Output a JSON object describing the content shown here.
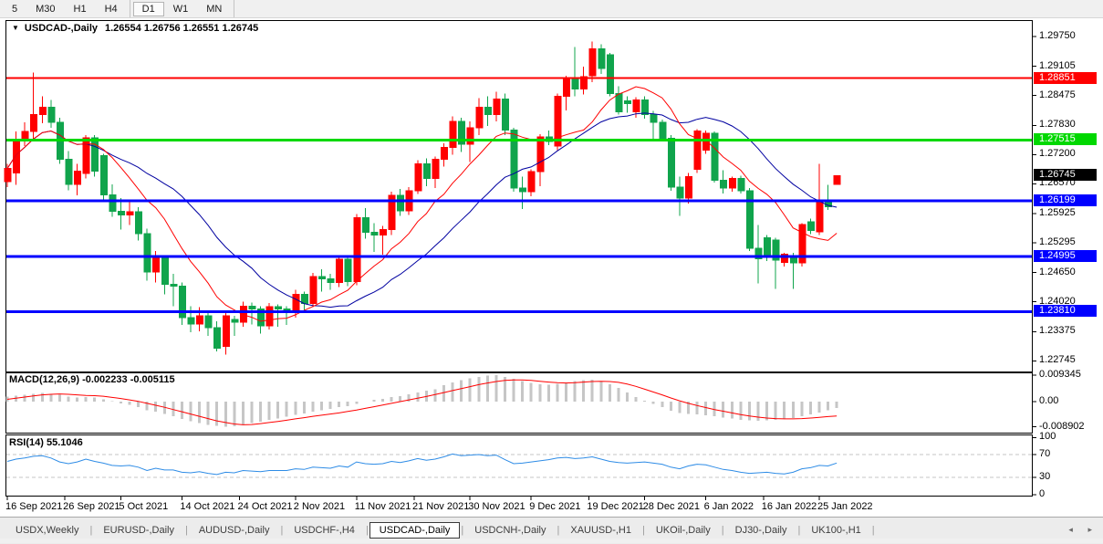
{
  "toolbar": {
    "groups": [
      [
        "5",
        "M30",
        "H1",
        "H4"
      ],
      [
        "D1",
        "W1",
        "MN"
      ]
    ],
    "active": "D1"
  },
  "chart": {
    "dropdown_icon": "▼",
    "title_symbol": "USDCAD-,Daily",
    "title_ohlc": "1.26554 1.26756 1.26551 1.26745",
    "macd_label": "MACD(12,26,9)",
    "macd_values": "-0.002233 -0.005115",
    "rsi_label": "RSI(14)",
    "rsi_values": "55.1046"
  },
  "chart_data": {
    "type": "candlestick",
    "symbol": "USDCAD",
    "timeframe": "Daily",
    "ohlc_current": {
      "open": 1.26554,
      "high": 1.26756,
      "low": 1.26551,
      "close": 1.26745
    },
    "price_axis": [
      "1.29750",
      "1.29105",
      "1.28475",
      "1.27830",
      "1.27200",
      "1.26570",
      "1.25925",
      "1.25295",
      "1.24650",
      "1.24020",
      "1.23375",
      "1.22745"
    ],
    "hlines": [
      {
        "label": "1.28851",
        "price": 1.28851,
        "color": "#ff0000",
        "width": 2
      },
      {
        "label": "1.27515",
        "price": 1.27515,
        "color": "#00d800",
        "width": 3
      },
      {
        "label": "1.26199",
        "price": 1.26199,
        "color": "#0000ff",
        "width": 3
      },
      {
        "label": "1.24995",
        "price": 1.24995,
        "color": "#0000ff",
        "width": 3
      },
      {
        "label": "1.23810",
        "price": 1.2381,
        "color": "#0000ff",
        "width": 3
      }
    ],
    "current_price_label": "1.26745",
    "candles": [
      [
        1.2662,
        1.27,
        1.265,
        1.269
      ],
      [
        1.268,
        1.277,
        1.2655,
        1.2748
      ],
      [
        1.2755,
        1.279,
        1.2738,
        1.277
      ],
      [
        1.277,
        1.2897,
        1.2753,
        1.2806
      ],
      [
        1.2806,
        1.2846,
        1.2788,
        1.2822
      ],
      [
        1.2822,
        1.2838,
        1.2778,
        1.279
      ],
      [
        1.279,
        1.28,
        1.27,
        1.271
      ],
      [
        1.271,
        1.2728,
        1.2643,
        1.2656
      ],
      [
        1.2656,
        1.27,
        1.2632,
        1.2684
      ],
      [
        1.2679,
        1.2762,
        1.2668,
        1.2756
      ],
      [
        1.2756,
        1.2762,
        1.2672,
        1.2684
      ],
      [
        1.2718,
        1.2722,
        1.2618,
        1.2633
      ],
      [
        1.2633,
        1.2656,
        1.2586,
        1.2597
      ],
      [
        1.2597,
        1.2626,
        1.2558,
        1.259
      ],
      [
        1.259,
        1.2621,
        1.2568,
        1.2596
      ],
      [
        1.2596,
        1.2606,
        1.2534,
        1.2549
      ],
      [
        1.2549,
        1.256,
        1.2448,
        1.2466
      ],
      [
        1.2466,
        1.2512,
        1.2444,
        1.2496
      ],
      [
        1.2496,
        1.2502,
        1.2418,
        1.244
      ],
      [
        1.244,
        1.2462,
        1.2392,
        1.2436
      ],
      [
        1.2436,
        1.2444,
        1.2352,
        1.2368
      ],
      [
        1.2368,
        1.2392,
        1.2336,
        1.2354
      ],
      [
        1.2354,
        1.239,
        1.2338,
        1.2372
      ],
      [
        1.2372,
        1.238,
        1.2328,
        1.2346
      ],
      [
        1.2346,
        1.236,
        1.2295,
        1.2302
      ],
      [
        1.2306,
        1.238,
        1.2288,
        1.2372
      ],
      [
        1.2364,
        1.2372,
        1.2328,
        1.2358
      ],
      [
        1.2358,
        1.2402,
        1.2348,
        1.2392
      ],
      [
        1.2392,
        1.24,
        1.2353,
        1.2386
      ],
      [
        1.2386,
        1.2392,
        1.2333,
        1.235
      ],
      [
        1.235,
        1.2399,
        1.2342,
        1.2391
      ],
      [
        1.2391,
        1.2396,
        1.2348,
        1.2386
      ],
      [
        1.2386,
        1.2392,
        1.2352,
        1.2383
      ],
      [
        1.2383,
        1.2428,
        1.2368,
        1.2418
      ],
      [
        1.2418,
        1.2424,
        1.2383,
        1.2398
      ],
      [
        1.2398,
        1.2464,
        1.239,
        1.2456
      ],
      [
        1.2456,
        1.2472,
        1.2424,
        1.2452
      ],
      [
        1.2452,
        1.2462,
        1.2428,
        1.2444
      ],
      [
        1.2444,
        1.2502,
        1.2434,
        1.2494
      ],
      [
        1.2494,
        1.25,
        1.2436,
        1.2446
      ],
      [
        1.2446,
        1.2592,
        1.2438,
        1.2584
      ],
      [
        1.2584,
        1.2604,
        1.2538,
        1.2552
      ],
      [
        1.2552,
        1.2572,
        1.251,
        1.2546
      ],
      [
        1.2546,
        1.2566,
        1.2504,
        1.2558
      ],
      [
        1.2558,
        1.264,
        1.2546,
        1.2632
      ],
      [
        1.2632,
        1.2646,
        1.2588,
        1.2598
      ],
      [
        1.2598,
        1.265,
        1.259,
        1.2642
      ],
      [
        1.2642,
        1.2708,
        1.2635,
        1.27
      ],
      [
        1.27,
        1.2712,
        1.2652,
        1.2668
      ],
      [
        1.2668,
        1.2716,
        1.2648,
        1.271
      ],
      [
        1.271,
        1.2744,
        1.2694,
        1.2735
      ],
      [
        1.2735,
        1.2802,
        1.272,
        1.2792
      ],
      [
        1.2792,
        1.28,
        1.2726,
        1.2742
      ],
      [
        1.2742,
        1.2792,
        1.2704,
        1.2778
      ],
      [
        1.2778,
        1.2842,
        1.2762,
        1.2822
      ],
      [
        1.2822,
        1.2846,
        1.2782,
        1.2806
      ],
      [
        1.2806,
        1.2856,
        1.2792,
        1.284
      ],
      [
        1.284,
        1.2852,
        1.2762,
        1.2773
      ],
      [
        1.2773,
        1.2778,
        1.264,
        1.2648
      ],
      [
        1.2648,
        1.2672,
        1.2602,
        1.264
      ],
      [
        1.264,
        1.2688,
        1.263,
        1.2683
      ],
      [
        1.2683,
        1.2764,
        1.2652,
        1.2758
      ],
      [
        1.2758,
        1.2772,
        1.274,
        1.2748
      ],
      [
        1.2738,
        1.2852,
        1.273,
        1.2846
      ],
      [
        1.2846,
        1.289,
        1.2815,
        1.2884
      ],
      [
        1.2884,
        1.2952,
        1.2846,
        1.2862
      ],
      [
        1.2862,
        1.291,
        1.285,
        1.2888
      ],
      [
        1.289,
        1.2964,
        1.2876,
        1.2948
      ],
      [
        1.2948,
        1.2958,
        1.2894,
        1.2906
      ],
      [
        1.2936,
        1.294,
        1.2846,
        1.2852
      ],
      [
        1.2852,
        1.2868,
        1.2806,
        1.2812
      ],
      [
        1.2836,
        1.2846,
        1.281,
        1.283
      ],
      [
        1.2812,
        1.2844,
        1.28,
        1.2838
      ],
      [
        1.2838,
        1.2846,
        1.2798,
        1.2806
      ],
      [
        1.2806,
        1.2814,
        1.2752,
        1.279
      ],
      [
        1.279,
        1.2796,
        1.2748,
        1.2755
      ],
      [
        1.2755,
        1.2762,
        1.2642,
        1.265
      ],
      [
        1.265,
        1.2672,
        1.2588,
        1.2626
      ],
      [
        1.2626,
        1.268,
        1.2614,
        1.2672
      ],
      [
        1.2688,
        1.2775,
        1.268,
        1.2771
      ],
      [
        1.273,
        1.2772,
        1.2722,
        1.2766
      ],
      [
        1.2766,
        1.277,
        1.266,
        1.2664
      ],
      [
        1.2664,
        1.2686,
        1.2636,
        1.2648
      ],
      [
        1.2648,
        1.2672,
        1.264,
        1.2668
      ],
      [
        1.2668,
        1.2674,
        1.2636,
        1.2642
      ],
      [
        1.2642,
        1.2648,
        1.2512,
        1.2518
      ],
      [
        1.2518,
        1.2568,
        1.2442,
        1.2495
      ],
      [
        1.254,
        1.2546,
        1.249,
        1.2498
      ],
      [
        1.2535,
        1.254,
        1.243,
        1.2492
      ],
      [
        1.2487,
        1.2508,
        1.2478,
        1.2505
      ],
      [
        1.2502,
        1.2508,
        1.243,
        1.2486
      ],
      [
        1.2486,
        1.2572,
        1.2478,
        1.2569
      ],
      [
        1.2575,
        1.2582,
        1.2548,
        1.2556
      ],
      [
        1.2553,
        1.27,
        1.2546,
        1.2619
      ],
      [
        1.2621,
        1.2655,
        1.26,
        1.2607
      ],
      [
        1.26554,
        1.26756,
        1.26551,
        1.26745
      ]
    ],
    "ma": [
      {
        "name": "fast-ma",
        "period": 10,
        "color": "#ff0000"
      },
      {
        "name": "slow-ma",
        "period": 20,
        "color": "#0000a0"
      }
    ],
    "macd": {
      "axis": [
        "0.009345",
        "0.00",
        "-0.008902"
      ],
      "hist": [
        0.0018,
        0.0021,
        0.0024,
        0.0028,
        0.003,
        0.0028,
        0.0024,
        0.0018,
        0.0015,
        0.0016,
        0.0014,
        0.0008,
        0.0001,
        -0.0006,
        -0.0012,
        -0.0019,
        -0.003,
        -0.0036,
        -0.0044,
        -0.0052,
        -0.0062,
        -0.007,
        -0.0076,
        -0.0082,
        -0.0086,
        -0.0089,
        -0.0087,
        -0.0082,
        -0.0076,
        -0.0071,
        -0.0065,
        -0.006,
        -0.0054,
        -0.0047,
        -0.0042,
        -0.0035,
        -0.003,
        -0.0026,
        -0.002,
        -0.0016,
        -0.0008,
        0.0,
        0.0006,
        0.001,
        0.0016,
        0.002,
        0.0026,
        0.0033,
        0.0038,
        0.0044,
        0.0058,
        0.0068,
        0.0076,
        0.0083,
        0.0088,
        0.0092,
        0.0093,
        0.0088,
        0.008,
        0.0072,
        0.0066,
        0.0062,
        0.006,
        0.0063,
        0.0068,
        0.0072,
        0.0076,
        0.0078,
        0.0072,
        0.0062,
        0.0048,
        0.0032,
        0.0016,
        0.0004,
        -0.0008,
        -0.002,
        -0.0032,
        -0.004,
        -0.0044,
        -0.0046,
        -0.0048,
        -0.0052,
        -0.0056,
        -0.006,
        -0.0064,
        -0.0067,
        -0.0068,
        -0.0067,
        -0.0065,
        -0.0062,
        -0.0058,
        -0.0052,
        -0.0045,
        -0.0038,
        -0.003,
        -0.002233
      ],
      "signal": [
        0.0008,
        0.0012,
        0.0016,
        0.002,
        0.0024,
        0.0026,
        0.0027,
        0.0026,
        0.0024,
        0.0022,
        0.0021,
        0.0019,
        0.0015,
        0.0011,
        0.0006,
        0.0001,
        -0.0006,
        -0.0013,
        -0.002,
        -0.0028,
        -0.0036,
        -0.0044,
        -0.0052,
        -0.006,
        -0.0068,
        -0.0074,
        -0.0079,
        -0.0082,
        -0.0081,
        -0.0078,
        -0.0074,
        -0.007,
        -0.0066,
        -0.0061,
        -0.0057,
        -0.0052,
        -0.0048,
        -0.0044,
        -0.004,
        -0.0035,
        -0.003,
        -0.0024,
        -0.0018,
        -0.0012,
        -0.0006,
        0.0,
        0.0006,
        0.0012,
        0.0018,
        0.0025,
        0.0032,
        0.0039,
        0.0046,
        0.0053,
        0.006,
        0.0066,
        0.0071,
        0.0075,
        0.0077,
        0.0077,
        0.0075,
        0.0072,
        0.0069,
        0.0067,
        0.0066,
        0.0067,
        0.0069,
        0.0071,
        0.0072,
        0.0071,
        0.0068,
        0.0062,
        0.0054,
        0.0044,
        0.0034,
        0.0024,
        0.0013,
        0.0003,
        -0.0006,
        -0.0014,
        -0.0021,
        -0.0028,
        -0.0034,
        -0.004,
        -0.0046,
        -0.0051,
        -0.0055,
        -0.0058,
        -0.006,
        -0.0061,
        -0.0061,
        -0.006,
        -0.0058,
        -0.0056,
        -0.0053,
        -0.005115
      ]
    },
    "rsi": {
      "axis": [
        "100",
        "70",
        "30",
        "0"
      ],
      "levels": [
        70,
        30
      ],
      "values": [
        58,
        62,
        64,
        67,
        68,
        64,
        57,
        54,
        57,
        62,
        58,
        55,
        51,
        50,
        51,
        48,
        42,
        46,
        43,
        43,
        39,
        38,
        40,
        37,
        35,
        39,
        38,
        42,
        41,
        40,
        42,
        42,
        42,
        45,
        44,
        48,
        47,
        46,
        50,
        48,
        57,
        54,
        53,
        54,
        58,
        56,
        59,
        63,
        60,
        62,
        66,
        71,
        68,
        69,
        70,
        68,
        69,
        61,
        54,
        55,
        57,
        59,
        61,
        64,
        65,
        63,
        64,
        66,
        62,
        58,
        56,
        55,
        56,
        57,
        55,
        53,
        48,
        45,
        50,
        53,
        52,
        48,
        44,
        42,
        39,
        37,
        38,
        39,
        37,
        36,
        39,
        45,
        47,
        51,
        50,
        55.1
      ]
    },
    "date_axis": [
      {
        "label": "16 Sep 2021",
        "i": 0
      },
      {
        "label": "26 Sep 2021",
        "i": 6.6
      },
      {
        "label": "5 Oct 2021",
        "i": 13
      },
      {
        "label": "14 Oct 2021",
        "i": 20
      },
      {
        "label": "24 Oct 2021",
        "i": 26.6
      },
      {
        "label": "2 Nov 2021",
        "i": 33
      },
      {
        "label": "11 Nov 2021",
        "i": 40
      },
      {
        "label": "21 Nov 2021",
        "i": 46.6
      },
      {
        "label": "30 Nov 2021",
        "i": 53
      },
      {
        "label": "9 Dec 2021",
        "i": 60
      },
      {
        "label": "19 Dec 2021",
        "i": 66.6
      },
      {
        "label": "28 Dec 2021",
        "i": 73
      },
      {
        "label": "6 Jan 2022",
        "i": 80
      },
      {
        "label": "16 Jan 2022",
        "i": 86.6
      },
      {
        "label": "25 Jan 2022",
        "i": 93
      }
    ],
    "colors": {
      "up": "#ff0000",
      "down": "#10a44c",
      "macd_hist": "#c6c6c6",
      "macd_signal": "#ff0000",
      "rsi_line": "#2e8ce6",
      "level_dash": "#c4c4c4",
      "current_badge": "#000000"
    }
  },
  "tabs": {
    "items": [
      "USDX,Weekly",
      "EURUSD-,Daily",
      "AUDUSD-,Daily",
      "USDCHF-,H4",
      "USDCAD-,Daily",
      "USDCNH-,Daily",
      "XAUUSD-,H1",
      "UKOil-,Daily",
      "DJ30-,Daily",
      "UK100-,H1"
    ],
    "active": "USDCAD-,Daily",
    "left_arrow": "◂",
    "right_arrow": "▸"
  }
}
